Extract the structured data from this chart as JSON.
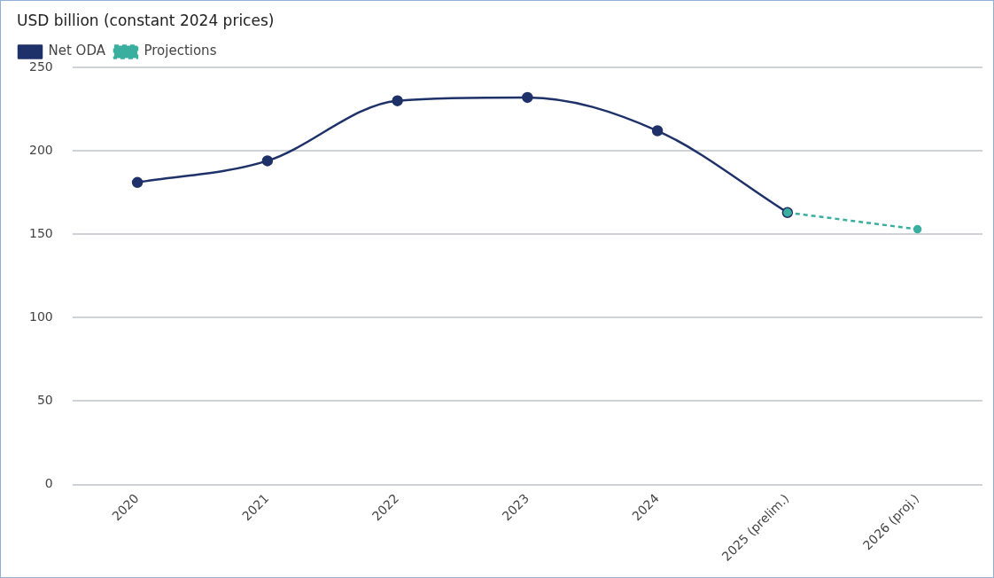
{
  "chart_data": {
    "type": "line",
    "ylabel": "USD billion (constant 2024 prices)",
    "categories": [
      "2020",
      "2021",
      "2022",
      "2023",
      "2024",
      "2025 (prelim.)",
      "2026 (proj.)"
    ],
    "series": [
      {
        "name": "Net ODA",
        "color": "#1f3169",
        "values": [
          181,
          194,
          230,
          232,
          212,
          163,
          null
        ]
      },
      {
        "name": "Projections",
        "color": "#3aafa0",
        "line_style": "dashed",
        "values": [
          null,
          null,
          null,
          null,
          null,
          163,
          153
        ]
      }
    ],
    "ylim": [
      0,
      250
    ],
    "yticks": [
      0,
      50,
      100,
      150,
      200,
      250
    ],
    "grid": "y",
    "legend": "top left",
    "marker": "circle"
  }
}
